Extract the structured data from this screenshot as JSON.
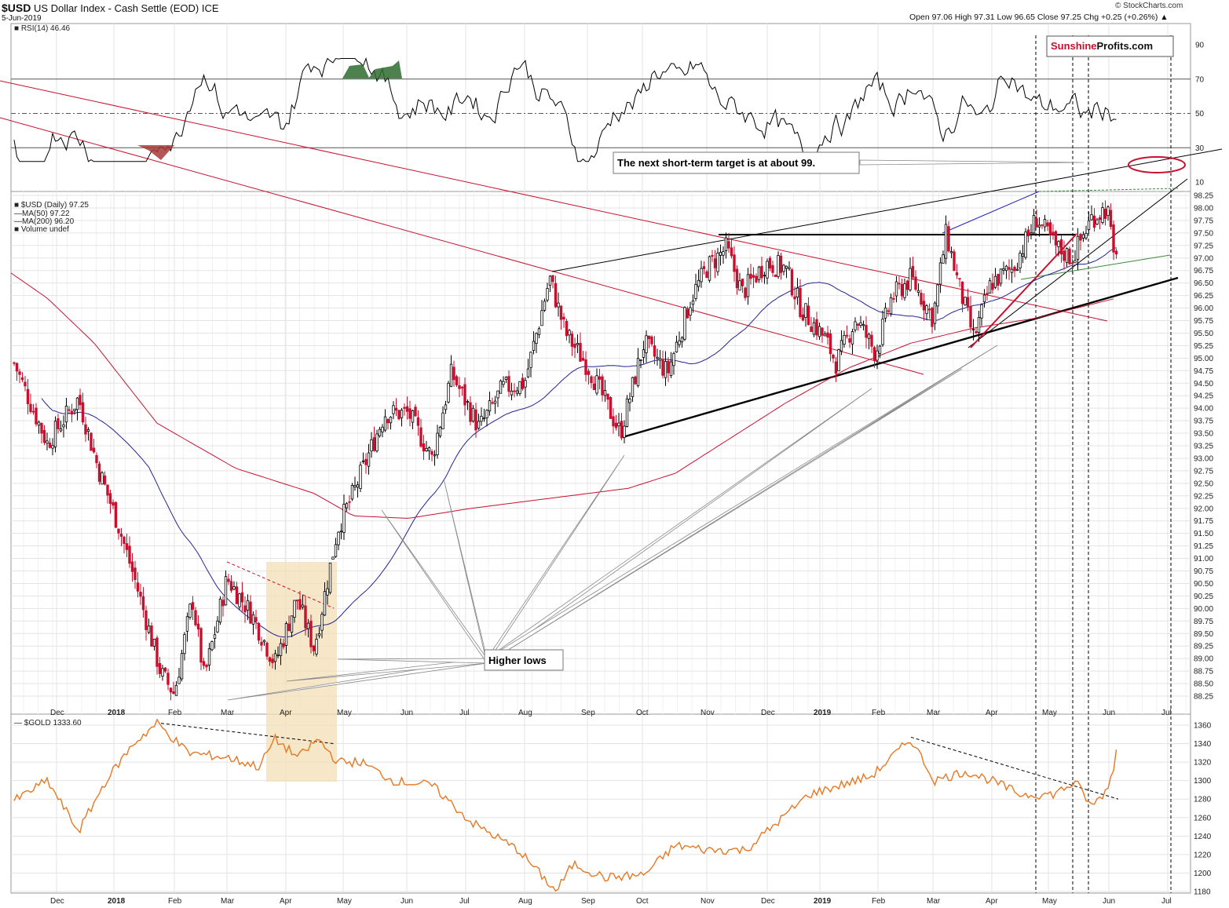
{
  "header": {
    "symbol": "$USD",
    "name": "US Dollar Index - Cash Settle (EOD)",
    "exchange": "ICE",
    "date": "5-Jun-2019",
    "ohlc": "Open 97.06  High 97.31  Low 96.65  Close 97.25  Chg +0.25 (+0.26%) ▲",
    "credit": "© StockCharts.com"
  },
  "brand": {
    "part1": "Sunshine",
    "part2": "Profits.com",
    "color1": "#c8102e",
    "color2": "#111111"
  },
  "annotations": {
    "target_note": "The next short-term target is at about 99.",
    "higher_lows": "Higher lows"
  },
  "colors": {
    "rsi_line": "#000000",
    "ma50": "#23238e",
    "ma200": "#c8102e",
    "up_candle": "#000000",
    "down_candle": "#c8102e",
    "gold_line": "#e87722",
    "rsi_overbought_fill": "#2e6b2e",
    "rsi_oversold_fill": "#a83a3a",
    "highlight": "#f2dfb4"
  },
  "chart_data": [
    {
      "type": "line",
      "panel": "RSI",
      "legend": "RSI(14) 46.46",
      "ylim": [
        0,
        100
      ],
      "yticks": [
        10,
        30,
        50,
        70,
        90
      ],
      "reference_lines": [
        30,
        50,
        70
      ],
      "last_value": 46.46
    },
    {
      "type": "candlestick",
      "panel": "price",
      "title": "$USD (Daily) 97.25",
      "legend": [
        "$USD (Daily) 97.25",
        "MA(50) 97.22",
        "MA(200) 96.20",
        "Volume undef"
      ],
      "ylim": [
        88.0,
        98.5
      ],
      "yticks": [
        "88.25",
        "88.50",
        "88.75",
        "89.00",
        "89.25",
        "89.50",
        "89.75",
        "90.00",
        "90.25",
        "90.50",
        "90.75",
        "91.00",
        "91.25",
        "91.50",
        "91.75",
        "92.00",
        "92.25",
        "92.50",
        "92.75",
        "93.00",
        "93.25",
        "93.50",
        "93.75",
        "94.00",
        "94.25",
        "94.50",
        "94.75",
        "95.00",
        "95.25",
        "95.50",
        "95.75",
        "96.00",
        "96.25",
        "96.50",
        "96.75",
        "97.00",
        "97.25",
        "97.50",
        "97.75",
        "98.00",
        "98.25"
      ],
      "xticks": [
        "Dec",
        "2018",
        "Feb",
        "Mar",
        "Apr",
        "May",
        "Jun",
        "Jul",
        "Aug",
        "Sep",
        "Oct",
        "Nov",
        "Dec",
        "2019",
        "Feb",
        "Mar",
        "Apr",
        "May",
        "Jun",
        "Jul"
      ],
      "key_points": [
        {
          "label": "Nov 2017",
          "value": 94.8
        },
        {
          "label": "Feb 2018 low",
          "value": 88.25
        },
        {
          "label": "Mar 2018",
          "value": 90.6
        },
        {
          "label": "Apr 2018 low",
          "value": 88.9
        },
        {
          "label": "May 2018",
          "value": 93.0
        },
        {
          "label": "Aug 2018 high",
          "value": 96.8
        },
        {
          "label": "Sep 2018 low",
          "value": 93.5
        },
        {
          "label": "Nov 2018 high",
          "value": 97.5
        },
        {
          "label": "Jan 2019 low",
          "value": 95.0
        },
        {
          "label": "Mar 2019 high",
          "value": 97.6
        },
        {
          "label": "Mar 2019 low",
          "value": 95.3
        },
        {
          "label": "May 2019 high",
          "value": 98.3
        },
        {
          "label": "Jun 2019 close",
          "value": 97.25
        }
      ],
      "ma50_last": 97.22,
      "ma200_last": 96.2
    },
    {
      "type": "line",
      "panel": "gold",
      "legend": "$GOLD 1333.60",
      "ylim": [
        1180,
        1370
      ],
      "yticks": [
        1180,
        1200,
        1220,
        1240,
        1260,
        1280,
        1300,
        1320,
        1340,
        1360
      ],
      "key_points": [
        {
          "label": "Nov 2017",
          "value": 1278
        },
        {
          "label": "Jan 2018 high",
          "value": 1360
        },
        {
          "label": "Apr 2018",
          "value": 1345
        },
        {
          "label": "Aug 2018 low",
          "value": 1180
        },
        {
          "label": "Feb 2019 high",
          "value": 1345
        },
        {
          "label": "May 2019 low",
          "value": 1272
        },
        {
          "label": "Jun 2019",
          "value": 1333.6
        }
      ],
      "last_value": 1333.6
    }
  ]
}
